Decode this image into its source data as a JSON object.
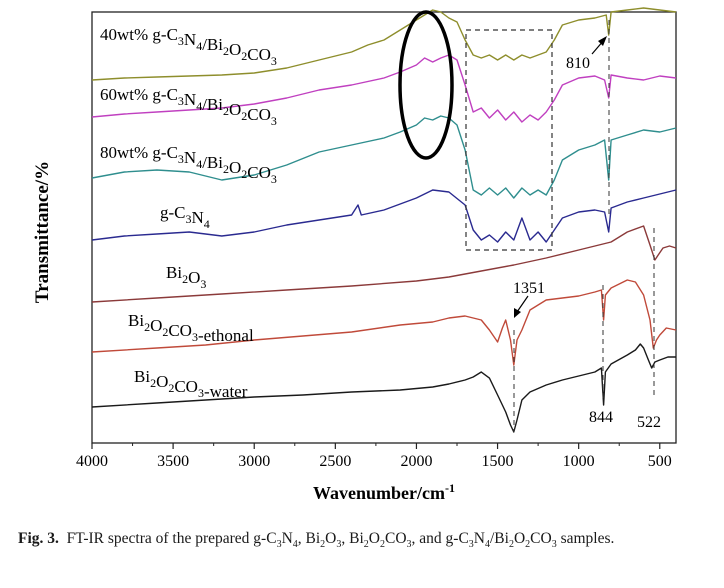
{
  "chart_data": {
    "type": "line",
    "title": "",
    "xlabel": "Wavenumber/cm",
    "xlabel_sup": "-1",
    "ylabel": "Transmittance/%",
    "xlim": [
      4000,
      400
    ],
    "x_reversed": true,
    "x_ticks": [
      4000,
      3500,
      3000,
      2500,
      2000,
      1500,
      1000,
      500
    ],
    "grid": false,
    "series": [
      {
        "name": "40wt% g-C3N4/Bi2O2CO3",
        "label_parts": [
          [
            "40wt% g-C",
            ""
          ],
          [
            "3",
            "sub"
          ],
          [
            "N",
            ""
          ],
          [
            "4",
            "sub"
          ],
          [
            "/Bi",
            ""
          ],
          [
            "2",
            "sub"
          ],
          [
            "O",
            ""
          ],
          [
            "2",
            "sub"
          ],
          [
            "CO",
            ""
          ],
          [
            "3",
            "sub"
          ]
        ],
        "color": "#8e8e2c",
        "points": [
          [
            4000,
            80
          ],
          [
            3800,
            78
          ],
          [
            3600,
            77
          ],
          [
            3400,
            76
          ],
          [
            3200,
            75
          ],
          [
            3000,
            73
          ],
          [
            2800,
            68
          ],
          [
            2600,
            60
          ],
          [
            2400,
            52
          ],
          [
            2300,
            45
          ],
          [
            2200,
            40
          ],
          [
            2100,
            30
          ],
          [
            2000,
            20
          ],
          [
            1900,
            10
          ],
          [
            1850,
            12
          ],
          [
            1800,
            18
          ],
          [
            1750,
            22
          ],
          [
            1700,
            40
          ],
          [
            1650,
            55
          ],
          [
            1600,
            58
          ],
          [
            1550,
            55
          ],
          [
            1500,
            60
          ],
          [
            1450,
            55
          ],
          [
            1400,
            60
          ],
          [
            1350,
            55
          ],
          [
            1300,
            58
          ],
          [
            1250,
            55
          ],
          [
            1200,
            52
          ],
          [
            1150,
            40
          ],
          [
            1100,
            25
          ],
          [
            1000,
            20
          ],
          [
            900,
            18
          ],
          [
            830,
            15
          ],
          [
            815,
            35
          ],
          [
            800,
            12
          ],
          [
            700,
            10
          ],
          [
            600,
            8
          ],
          [
            500,
            10
          ],
          [
            400,
            12
          ]
        ]
      },
      {
        "name": "60wt% g-C3N4/Bi2O2CO3",
        "label_parts": [
          [
            "60wt% g-C",
            ""
          ],
          [
            "3",
            "sub"
          ],
          [
            "N",
            ""
          ],
          [
            "4",
            "sub"
          ],
          [
            "/Bi",
            ""
          ],
          [
            "2",
            "sub"
          ],
          [
            "O",
            ""
          ],
          [
            "2",
            "sub"
          ],
          [
            "CO",
            ""
          ],
          [
            "3",
            "sub"
          ]
        ],
        "color": "#c040c0",
        "points": [
          [
            4000,
            117
          ],
          [
            3800,
            114
          ],
          [
            3600,
            112
          ],
          [
            3400,
            110
          ],
          [
            3200,
            108
          ],
          [
            3000,
            104
          ],
          [
            2800,
            98
          ],
          [
            2600,
            90
          ],
          [
            2400,
            85
          ],
          [
            2200,
            78
          ],
          [
            2100,
            72
          ],
          [
            2000,
            65
          ],
          [
            1950,
            58
          ],
          [
            1900,
            62
          ],
          [
            1850,
            58
          ],
          [
            1800,
            55
          ],
          [
            1750,
            60
          ],
          [
            1700,
            85
          ],
          [
            1650,
            112
          ],
          [
            1600,
            108
          ],
          [
            1550,
            118
          ],
          [
            1500,
            110
          ],
          [
            1450,
            120
          ],
          [
            1400,
            112
          ],
          [
            1350,
            122
          ],
          [
            1300,
            115
          ],
          [
            1250,
            120
          ],
          [
            1200,
            112
          ],
          [
            1150,
            100
          ],
          [
            1100,
            85
          ],
          [
            1000,
            78
          ],
          [
            900,
            76
          ],
          [
            840,
            80
          ],
          [
            815,
            98
          ],
          [
            800,
            75
          ],
          [
            700,
            78
          ],
          [
            600,
            80
          ],
          [
            500,
            76
          ],
          [
            400,
            78
          ]
        ]
      },
      {
        "name": "80wt% g-C3N4/Bi2O2CO3",
        "label_parts": [
          [
            "80wt% g-C",
            ""
          ],
          [
            "3",
            "sub"
          ],
          [
            "N",
            ""
          ],
          [
            "4",
            "sub"
          ],
          [
            "/Bi",
            ""
          ],
          [
            "2",
            "sub"
          ],
          [
            "O",
            ""
          ],
          [
            "2",
            "sub"
          ],
          [
            "CO",
            ""
          ],
          [
            "3",
            "sub"
          ]
        ],
        "color": "#2f8e8e",
        "points": [
          [
            4000,
            178
          ],
          [
            3800,
            172
          ],
          [
            3600,
            170
          ],
          [
            3400,
            172
          ],
          [
            3200,
            180
          ],
          [
            3000,
            175
          ],
          [
            2800,
            165
          ],
          [
            2600,
            152
          ],
          [
            2400,
            145
          ],
          [
            2200,
            138
          ],
          [
            2100,
            132
          ],
          [
            2000,
            125
          ],
          [
            1950,
            118
          ],
          [
            1900,
            120
          ],
          [
            1850,
            116
          ],
          [
            1800,
            118
          ],
          [
            1750,
            125
          ],
          [
            1700,
            150
          ],
          [
            1650,
            190
          ],
          [
            1600,
            195
          ],
          [
            1550,
            188
          ],
          [
            1500,
            195
          ],
          [
            1450,
            188
          ],
          [
            1400,
            198
          ],
          [
            1350,
            188
          ],
          [
            1300,
            195
          ],
          [
            1250,
            190
          ],
          [
            1200,
            195
          ],
          [
            1150,
            180
          ],
          [
            1100,
            160
          ],
          [
            1000,
            150
          ],
          [
            900,
            145
          ],
          [
            840,
            140
          ],
          [
            815,
            180
          ],
          [
            800,
            140
          ],
          [
            700,
            135
          ],
          [
            600,
            130
          ],
          [
            500,
            132
          ],
          [
            400,
            128
          ]
        ]
      },
      {
        "name": "g-C3N4",
        "label_parts": [
          [
            "g-C",
            ""
          ],
          [
            "3",
            "sub"
          ],
          [
            "N",
            ""
          ],
          [
            "4",
            "sub"
          ]
        ],
        "color": "#2a2a90",
        "points": [
          [
            4000,
            240
          ],
          [
            3800,
            236
          ],
          [
            3600,
            234
          ],
          [
            3400,
            232
          ],
          [
            3200,
            236
          ],
          [
            3000,
            232
          ],
          [
            2800,
            225
          ],
          [
            2600,
            220
          ],
          [
            2400,
            215
          ],
          [
            2360,
            205
          ],
          [
            2340,
            215
          ],
          [
            2200,
            210
          ],
          [
            2000,
            198
          ],
          [
            1900,
            190
          ],
          [
            1800,
            192
          ],
          [
            1700,
            205
          ],
          [
            1650,
            230
          ],
          [
            1600,
            240
          ],
          [
            1550,
            235
          ],
          [
            1500,
            242
          ],
          [
            1450,
            232
          ],
          [
            1400,
            240
          ],
          [
            1350,
            218
          ],
          [
            1300,
            240
          ],
          [
            1250,
            232
          ],
          [
            1200,
            242
          ],
          [
            1150,
            230
          ],
          [
            1100,
            218
          ],
          [
            1000,
            212
          ],
          [
            900,
            210
          ],
          [
            840,
            212
          ],
          [
            815,
            232
          ],
          [
            800,
            208
          ],
          [
            700,
            202
          ],
          [
            600,
            198
          ],
          [
            500,
            194
          ],
          [
            400,
            190
          ]
        ]
      },
      {
        "name": "Bi2O3",
        "label_parts": [
          [
            "Bi",
            ""
          ],
          [
            "2",
            "sub"
          ],
          [
            "O",
            ""
          ],
          [
            "3",
            "sub"
          ]
        ],
        "color": "#8b3a3a",
        "points": [
          [
            4000,
            302
          ],
          [
            3600,
            298
          ],
          [
            3200,
            294
          ],
          [
            2800,
            290
          ],
          [
            2400,
            286
          ],
          [
            2000,
            281
          ],
          [
            1800,
            277
          ],
          [
            1600,
            271
          ],
          [
            1400,
            265
          ],
          [
            1200,
            258
          ],
          [
            1000,
            250
          ],
          [
            900,
            246
          ],
          [
            800,
            242
          ],
          [
            700,
            232
          ],
          [
            600,
            226
          ],
          [
            560,
            245
          ],
          [
            530,
            260
          ],
          [
            510,
            255
          ],
          [
            480,
            248
          ],
          [
            440,
            246
          ],
          [
            400,
            248
          ]
        ]
      },
      {
        "name": "Bi2O2CO3-ethonal",
        "label_parts": [
          [
            "Bi",
            ""
          ],
          [
            "2",
            "sub"
          ],
          [
            "O",
            ""
          ],
          [
            "2",
            "sub"
          ],
          [
            "CO",
            ""
          ],
          [
            "3",
            "sub"
          ],
          [
            "-ethonal",
            ""
          ]
        ],
        "color": "#c04a3a",
        "points": [
          [
            4000,
            352
          ],
          [
            3600,
            348
          ],
          [
            3300,
            345
          ],
          [
            3000,
            340
          ],
          [
            2700,
            336
          ],
          [
            2400,
            332
          ],
          [
            2100,
            325
          ],
          [
            1900,
            322
          ],
          [
            1800,
            318
          ],
          [
            1700,
            316
          ],
          [
            1600,
            320
          ],
          [
            1550,
            330
          ],
          [
            1500,
            342
          ],
          [
            1470,
            328
          ],
          [
            1450,
            320
          ],
          [
            1420,
            340
          ],
          [
            1400,
            365
          ],
          [
            1380,
            340
          ],
          [
            1350,
            330
          ],
          [
            1300,
            310
          ],
          [
            1250,
            305
          ],
          [
            1200,
            300
          ],
          [
            1100,
            298
          ],
          [
            1000,
            296
          ],
          [
            900,
            292
          ],
          [
            860,
            290
          ],
          [
            846,
            320
          ],
          [
            835,
            295
          ],
          [
            800,
            288
          ],
          [
            700,
            280
          ],
          [
            650,
            282
          ],
          [
            600,
            295
          ],
          [
            560,
            320
          ],
          [
            540,
            348
          ],
          [
            520,
            340
          ],
          [
            500,
            335
          ],
          [
            460,
            328
          ],
          [
            400,
            330
          ]
        ]
      },
      {
        "name": "Bi2O2CO3-water",
        "label_parts": [
          [
            "Bi",
            ""
          ],
          [
            "2",
            "sub"
          ],
          [
            "O",
            ""
          ],
          [
            "2",
            "sub"
          ],
          [
            "CO",
            ""
          ],
          [
            "3",
            "sub"
          ],
          [
            "-water",
            ""
          ]
        ],
        "color": "#1a1a1a",
        "points": [
          [
            4000,
            407
          ],
          [
            3600,
            403
          ],
          [
            3300,
            400
          ],
          [
            3000,
            397
          ],
          [
            2700,
            395
          ],
          [
            2400,
            392
          ],
          [
            2100,
            390
          ],
          [
            1900,
            387
          ],
          [
            1800,
            384
          ],
          [
            1700,
            380
          ],
          [
            1650,
            377
          ],
          [
            1600,
            372
          ],
          [
            1550,
            378
          ],
          [
            1500,
            395
          ],
          [
            1450,
            412
          ],
          [
            1420,
            425
          ],
          [
            1400,
            432
          ],
          [
            1380,
            420
          ],
          [
            1350,
            400
          ],
          [
            1300,
            392
          ],
          [
            1200,
            385
          ],
          [
            1100,
            380
          ],
          [
            1000,
            376
          ],
          [
            900,
            372
          ],
          [
            860,
            368
          ],
          [
            846,
            405
          ],
          [
            835,
            372
          ],
          [
            800,
            364
          ],
          [
            700,
            355
          ],
          [
            650,
            350
          ],
          [
            620,
            344
          ],
          [
            600,
            348
          ],
          [
            570,
            360
          ],
          [
            550,
            368
          ],
          [
            530,
            362
          ],
          [
            500,
            360
          ],
          [
            450,
            357
          ],
          [
            400,
            357
          ]
        ]
      }
    ],
    "annotations": [
      {
        "text": "810",
        "x": 810
      },
      {
        "text": "1351",
        "x": 1351
      },
      {
        "text": "844",
        "x": 844
      },
      {
        "text": "522",
        "x": 522
      }
    ]
  },
  "caption": {
    "prefix": "Fig. 3.",
    "text": "FT-IR spectra of the prepared g-C3N4, Bi2O3, Bi2O2CO3, and g-C3N4/Bi2O2CO3 samples."
  }
}
